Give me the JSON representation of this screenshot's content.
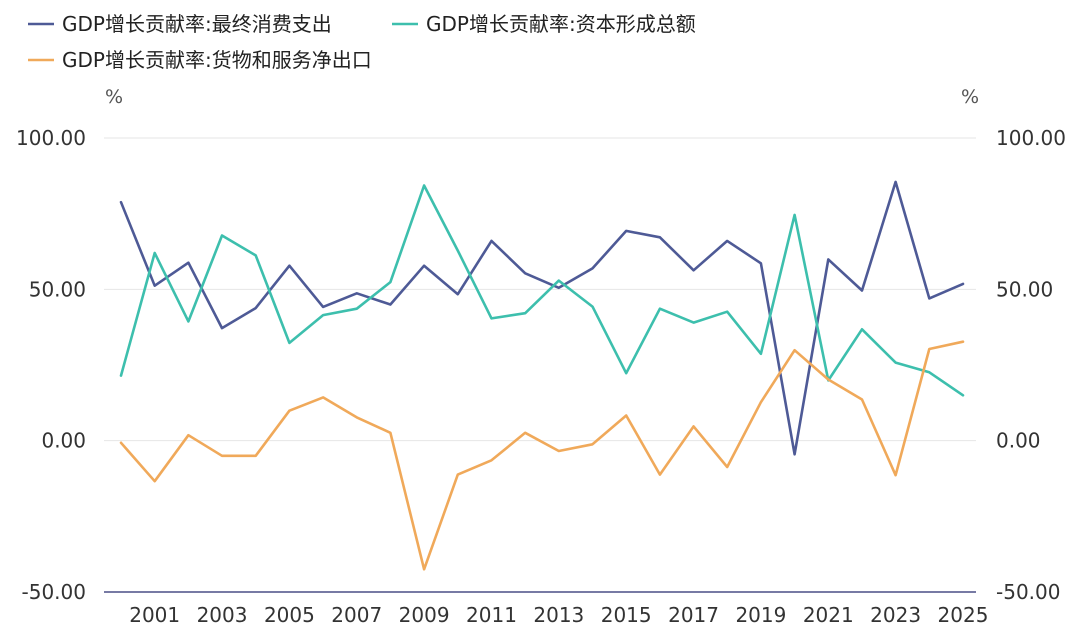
{
  "chart_data": {
    "type": "line",
    "title": "",
    "xlabel": "",
    "ylabel": "",
    "y_unit_left": "%",
    "y_unit_right": "%",
    "ylim": [
      -50,
      100
    ],
    "y_ticks": [
      100,
      50,
      0,
      -50
    ],
    "y_tick_labels": [
      "100.00",
      "50.00",
      "0.00",
      "-50.00"
    ],
    "x": [
      2000,
      2001,
      2002,
      2003,
      2004,
      2005,
      2006,
      2007,
      2008,
      2009,
      2010,
      2011,
      2012,
      2013,
      2014,
      2015,
      2016,
      2017,
      2018,
      2019,
      2020,
      2021,
      2022,
      2023,
      2024,
      2025
    ],
    "x_tick_labels": [
      "2001",
      "2003",
      "2005",
      "2007",
      "2009",
      "2011",
      "2013",
      "2015",
      "2017",
      "2019",
      "2021",
      "2023",
      "2025"
    ],
    "x_tick_values": [
      2001,
      2003,
      2005,
      2007,
      2009,
      2011,
      2013,
      2015,
      2017,
      2019,
      2021,
      2023,
      2025
    ],
    "grid": true,
    "legend_position": "top-left",
    "series": [
      {
        "name": "GDP增长贡献率:最终消费支出",
        "color": "#4e5a96",
        "values": [
          78.8,
          51.2,
          58.8,
          37.2,
          43.8,
          57.8,
          44.2,
          48.7,
          45.0,
          57.8,
          48.4,
          66.0,
          55.3,
          50.5,
          56.9,
          69.3,
          67.2,
          56.3,
          66.0,
          58.6,
          -4.5,
          59.9,
          49.6,
          85.5,
          47.0,
          51.8
        ]
      },
      {
        "name": "GDP增长贡献率:资本形成总额",
        "color": "#3dbfad",
        "values": [
          21.5,
          62.0,
          39.4,
          67.8,
          61.2,
          32.3,
          41.5,
          43.6,
          52.4,
          84.3,
          62.8,
          40.4,
          42.1,
          52.9,
          44.3,
          22.3,
          43.6,
          39.0,
          42.6,
          28.7,
          74.6,
          19.9,
          36.8,
          25.8,
          22.6,
          15.0
        ]
      },
      {
        "name": "GDP增长贡献率:货物和服务净出口",
        "color": "#f0a95a",
        "values": [
          -0.7,
          -13.4,
          1.8,
          -5.0,
          -5.0,
          9.9,
          14.3,
          7.7,
          2.6,
          -42.5,
          -11.2,
          -6.5,
          2.6,
          -3.4,
          -1.2,
          8.3,
          -11.2,
          4.7,
          -8.7,
          12.7,
          29.9,
          20.2,
          13.6,
          -11.4,
          30.3,
          32.7
        ]
      }
    ]
  }
}
